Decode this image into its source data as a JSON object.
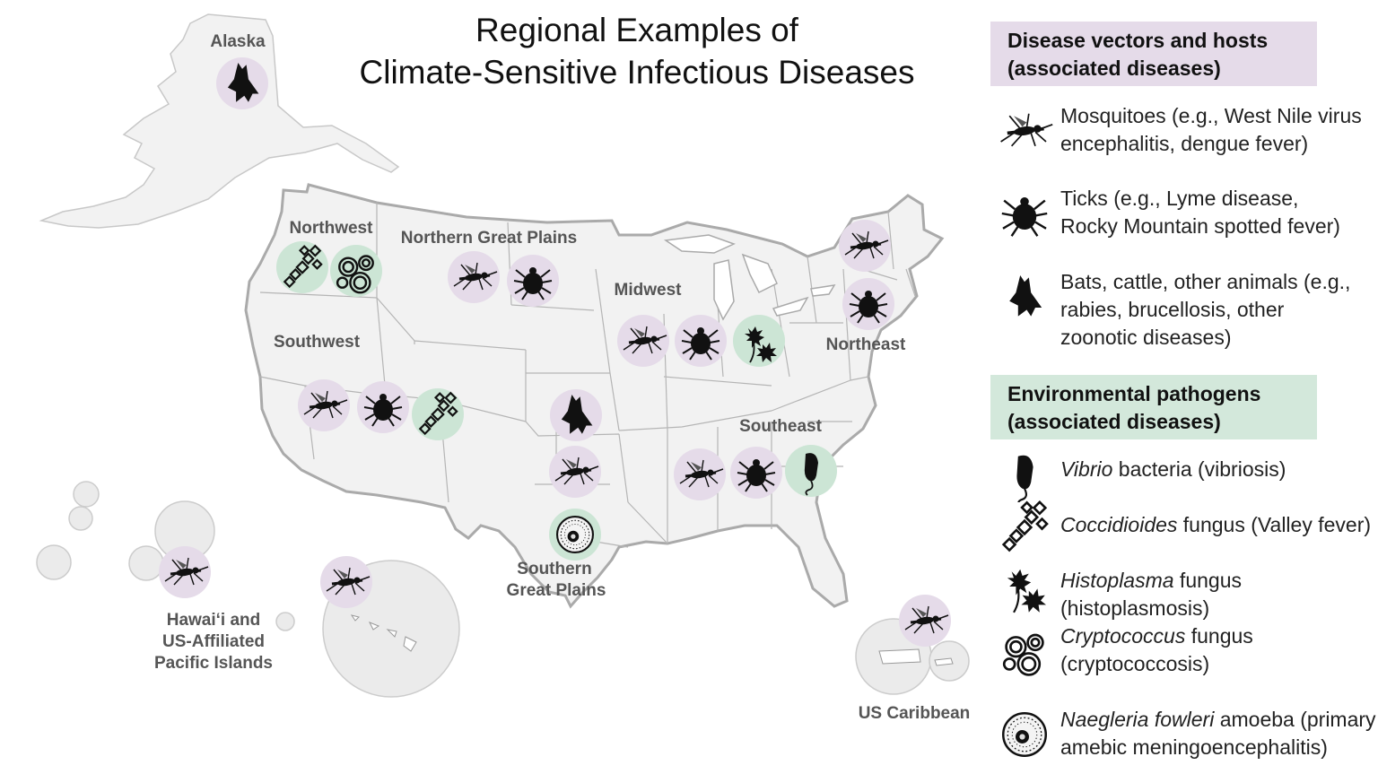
{
  "title": {
    "line1": "Regional Examples of",
    "line2": "Climate-Sensitive Infectious Diseases"
  },
  "regions": {
    "alaska": "Alaska",
    "northwest": "Northwest",
    "northern_great_plains": "Northern Great Plains",
    "midwest": "Midwest",
    "northeast": "Northeast",
    "southwest": "Southwest",
    "southeast": "Southeast",
    "southern_great_plains_1": "Southern",
    "southern_great_plains_2": "Great Plains",
    "hawaii_1": "Hawai‘i and",
    "hawaii_2": "US-Affiliated",
    "hawaii_3": "Pacific Islands",
    "caribbean": "US Caribbean"
  },
  "legend": {
    "vectors_header_1": "Disease vectors and hosts",
    "vectors_header_2": "(associated diseases)",
    "mosquito_1": "Mosquitoes (e.g., West Nile virus",
    "mosquito_2": "encephalitis, dengue fever)",
    "tick_1": "Ticks (e.g., Lyme disease,",
    "tick_2": "Rocky Mountain spotted fever)",
    "bat_1": "Bats, cattle, other animals (e.g.,",
    "bat_2": "rabies, brucellosis, other",
    "bat_3": "zoonotic diseases)",
    "env_header_1": "Environmental pathogens",
    "env_header_2": "(associated diseases)",
    "vibrio_italic": "Vibrio",
    "vibrio_rest": " bacteria (vibriosis)",
    "cocci_italic": "Coccidioides",
    "cocci_rest": " fungus (Valley fever)",
    "histo_italic": "Histoplasma",
    "histo_rest": " fungus (histoplasmosis)",
    "crypto_italic": "Cryptococcus",
    "crypto_rest": " fungus",
    "crypto_2": "(cryptococcosis)",
    "naegleria_italic": "Naegleria fowleri",
    "naegleria_rest": " amoeba  (primary",
    "naegleria_2": "amebic meningoencephalitis)"
  },
  "colors": {
    "vector_circle": "#e5dbe9",
    "pathogen_circle": "#cce5d5",
    "land": "#f2f2f2",
    "border": "#b5b5b5"
  },
  "map_icons": {
    "alaska": [
      "bat"
    ],
    "northwest": [
      "coccidioides",
      "cryptococcus"
    ],
    "northern_great_plains": [
      "mosquito",
      "tick"
    ],
    "midwest": [
      "mosquito",
      "tick",
      "histoplasma"
    ],
    "northeast": [
      "mosquito",
      "tick"
    ],
    "southwest": [
      "mosquito",
      "tick",
      "coccidioides"
    ],
    "southern_great_plains": [
      "bat",
      "mosquito",
      "naegleria"
    ],
    "southeast": [
      "mosquito",
      "tick",
      "vibrio"
    ],
    "hawaii": [
      "mosquito",
      "mosquito"
    ],
    "caribbean": [
      "mosquito"
    ]
  }
}
